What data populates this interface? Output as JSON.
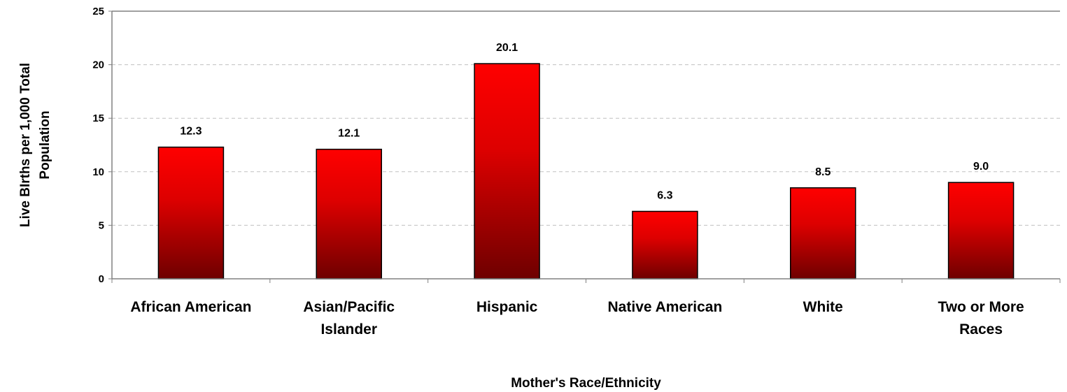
{
  "chart_data": {
    "type": "bar",
    "categories": [
      [
        "African American"
      ],
      [
        "Asian/Pacific",
        "Islander"
      ],
      [
        "Hispanic"
      ],
      [
        "Native American"
      ],
      [
        "White"
      ],
      [
        "Two or More",
        "Races"
      ]
    ],
    "values": [
      12.3,
      12.1,
      20.1,
      6.3,
      8.5,
      9.0
    ],
    "data_labels": [
      "12.3",
      "12.1",
      "20.1",
      "6.3",
      "8.5",
      "9.0"
    ],
    "xlabel": "Mother's Race/Ethnicity",
    "ylabel": [
      "Live BIrths per 1,000 Total",
      "Population"
    ],
    "ylim": [
      0,
      25
    ],
    "yticks": [
      0,
      5,
      10,
      15,
      20,
      25
    ],
    "grid": true,
    "legend": "none",
    "colors": {
      "bar_top": "#ff0000",
      "bar_bottom": "#6e0000",
      "grid": "#c0c0c0",
      "axis": "#808080"
    }
  }
}
